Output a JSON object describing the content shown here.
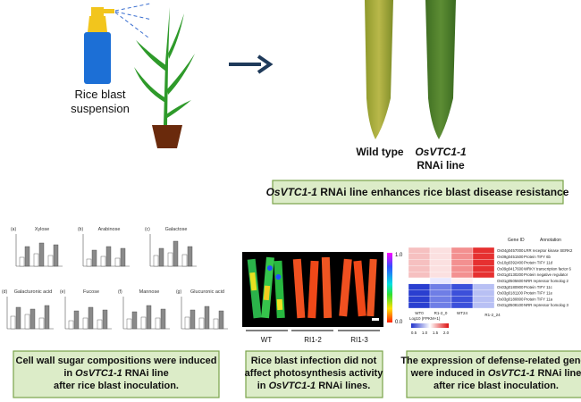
{
  "spray_label": [
    "Rice blast",
    "suspension"
  ],
  "wild_type": "Wild type",
  "rnai_label": [
    "OsVTC1-1",
    "RNAi line"
  ],
  "headline": [
    {
      "text": "OsVTC1-1",
      "italic": true
    },
    {
      "text": " RNAi line enhances rice blast disease resistance"
    }
  ],
  "sugar_panels": [
    {
      "tag": "(a)",
      "title": "Xylose"
    },
    {
      "tag": "(b)",
      "title": "Arabinose"
    },
    {
      "tag": "(c)",
      "title": "Galactose"
    },
    {
      "tag": "(d)",
      "title": "Galacturonic acid"
    },
    {
      "tag": "(e)",
      "title": "Fucose"
    },
    {
      "tag": "(f)",
      "title": "Mannose"
    },
    {
      "tag": "(g)",
      "title": "Glucuronic acid"
    }
  ],
  "photo": {
    "labels": [
      "WT",
      "RI1-2",
      "RI1-3"
    ],
    "scale": [
      "1.0",
      "0.0"
    ]
  },
  "heatmap": {
    "header": [
      "Gene ID",
      "Annotation"
    ],
    "genes": [
      {
        "id": "Os04g0457000",
        "annotation": "LRR receptor kinase SERK2"
      },
      {
        "id": "Os09g0451500",
        "annotation": "Protein TIFY 6b"
      },
      {
        "id": "Os10g0392400",
        "annotation": "Protein TIFY 11d"
      },
      {
        "id": "Os09g0417600",
        "annotation": "WRKY transcription factor 6"
      },
      {
        "id": "Os01g0130200",
        "annotation": "Protein negative regulator"
      },
      {
        "id": "Os01g0505600",
        "annotation": "NRR repressor homolog 2"
      },
      {
        "id": "Os03g0180900",
        "annotation": "Protein TIFY 11c"
      },
      {
        "id": "Os03g0181100",
        "annotation": "Protein TIFY 11e"
      },
      {
        "id": "Os03g0180800",
        "annotation": "Protein TIFY 11a"
      },
      {
        "id": "Os01g0508100",
        "annotation": "NRR repressor homolog 3"
      }
    ],
    "columns": [
      "WT0",
      "R1-2_0",
      "WT24",
      "R1-2_24"
    ],
    "legend_title": "Log10 (FPKM+1)",
    "legend_ticks": [
      "0.5",
      "1.0",
      "1.5",
      "2.0"
    ]
  },
  "callouts": [
    {
      "lines": [
        [
          {
            "text": "Cell wall sugar compositions were induced"
          }
        ],
        [
          {
            "text": "in "
          },
          {
            "text": "OsVTC1-1",
            "italic": true
          },
          {
            "text": " RNAi line"
          }
        ],
        [
          {
            "text": "after rice blast inoculation."
          }
        ]
      ]
    },
    {
      "lines": [
        [
          {
            "text": "Rice blast infection did not"
          }
        ],
        [
          {
            "text": "affect photosynthesis activity"
          }
        ],
        [
          {
            "text": "in "
          },
          {
            "text": "OsVTC1-1",
            "italic": true
          },
          {
            "text": " RNAi lines."
          }
        ]
      ]
    },
    {
      "lines": [
        [
          {
            "text": "The expression of defense-related genes"
          }
        ],
        [
          {
            "text": "were induced in "
          },
          {
            "text": "OsVTC1-1",
            "italic": true
          },
          {
            "text": " RNAi line"
          }
        ],
        [
          {
            "text": "after rice blast inoculation."
          }
        ]
      ]
    }
  ]
}
